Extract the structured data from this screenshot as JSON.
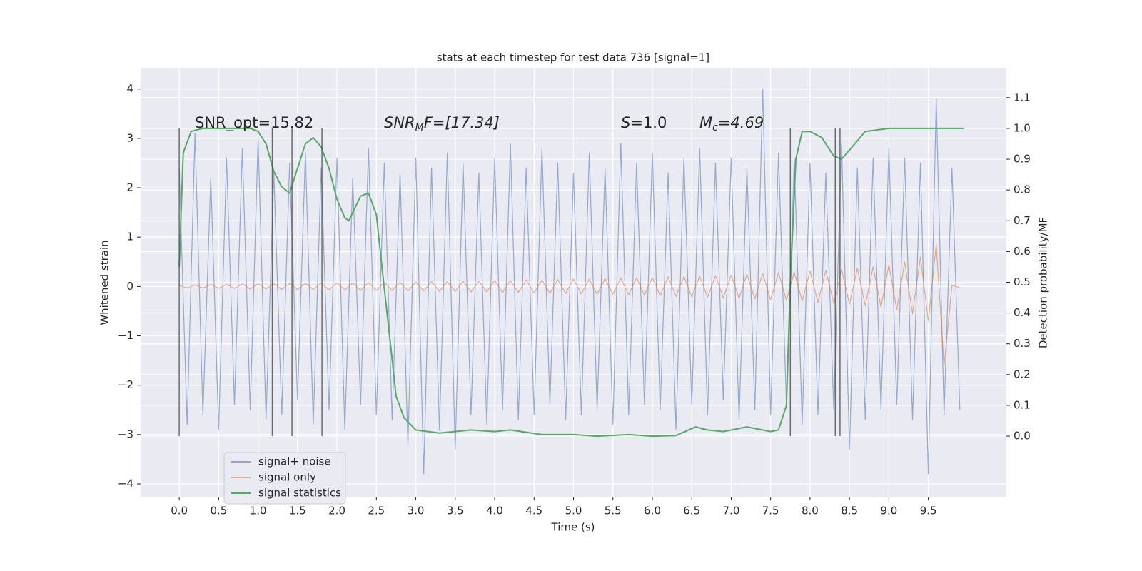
{
  "chart_data": {
    "type": "line",
    "title": "stats at each timestep for test data 736 [signal=1]",
    "xlabel": "Time (s)",
    "ylabel": "Whitened strain",
    "y2label": "Detection probability/MF",
    "annotations": [
      {
        "text": "SNR_opt=15.82"
      },
      {
        "main": "SNR",
        "sub": "M",
        "tail": "F=[17.34]"
      },
      {
        "main": "S",
        "tail": "=1.0"
      },
      {
        "main": "M",
        "sub": "c",
        "tail": "=4.69"
      }
    ],
    "x": [
      0,
      0.1,
      0.2,
      0.3,
      0.4,
      0.5,
      0.6,
      0.7,
      0.8,
      0.9,
      1,
      1.1,
      1.2,
      1.3,
      1.4,
      1.5,
      1.6,
      1.7,
      1.8,
      1.9,
      2,
      2.1,
      2.2,
      2.3,
      2.4,
      2.5,
      2.6,
      2.7,
      2.8,
      2.9,
      3,
      3.1,
      3.2,
      3.3,
      3.4,
      3.5,
      3.6,
      3.7,
      3.8,
      3.9,
      4,
      4.1,
      4.2,
      4.3,
      4.4,
      4.5,
      4.6,
      4.7,
      4.8,
      4.9,
      5,
      5.1,
      5.2,
      5.3,
      5.4,
      5.5,
      5.6,
      5.7,
      5.8,
      5.9,
      6,
      6.1,
      6.2,
      6.3,
      6.4,
      6.5,
      6.6,
      6.7,
      6.8,
      6.9,
      7,
      7.1,
      7.2,
      7.3,
      7.4,
      7.5,
      7.6,
      7.7,
      7.8,
      7.9,
      8,
      8.1,
      8.2,
      8.3,
      8.4,
      8.5,
      8.6,
      8.7,
      8.8,
      8.9,
      9,
      9.1,
      9.2,
      9.3,
      9.4,
      9.5,
      9.6,
      9.7,
      9.8,
      9.9
    ],
    "series": [
      {
        "name": "signal+ noise",
        "color": "#4c72b0",
        "values": [
          2.4,
          -2.8,
          3.1,
          -2.6,
          2.2,
          -2.9,
          2.6,
          -2.4,
          2.8,
          -2.5,
          3.0,
          -2.7,
          2.3,
          -2.6,
          2.5,
          -2.3,
          2.7,
          -2.8,
          2.4,
          -2.5,
          2.6,
          -2.9,
          2.2,
          -2.4,
          2.8,
          -2.6,
          2.5,
          -2.7,
          2.3,
          -3.2,
          2.6,
          -3.8,
          2.4,
          -2.9,
          2.7,
          -3.3,
          2.5,
          -2.6,
          2.3,
          -2.8,
          2.6,
          -2.5,
          2.9,
          -2.7,
          2.4,
          -2.6,
          2.8,
          -2.4,
          2.5,
          -2.7,
          2.3,
          -2.6,
          2.7,
          -2.5,
          2.4,
          -2.8,
          2.9,
          -2.6,
          2.5,
          -2.4,
          2.7,
          -2.5,
          2.3,
          -2.9,
          2.6,
          -2.4,
          2.8,
          -2.6,
          2.5,
          -2.3,
          2.6,
          -2.7,
          2.4,
          -2.5,
          4.0,
          -2.6,
          2.7,
          -2.4,
          2.6,
          -2.8,
          2.5,
          -2.6,
          2.3,
          -2.5,
          2.9,
          -3.3,
          2.4,
          -2.7,
          2.6,
          -2.5,
          2.8,
          -2.4,
          2.6,
          -2.7,
          2.5,
          -3.8,
          3.8,
          -2.6,
          2.4,
          -2.5
        ]
      },
      {
        "name": "signal only",
        "color": "#dd8452",
        "values": [
          0.02,
          -0.03,
          0.03,
          -0.03,
          0.04,
          -0.04,
          0.04,
          -0.04,
          0.05,
          -0.05,
          0.05,
          -0.05,
          0.05,
          -0.06,
          0.06,
          -0.06,
          0.06,
          -0.06,
          0.07,
          -0.07,
          0.07,
          -0.07,
          0.07,
          -0.08,
          0.08,
          -0.08,
          0.08,
          -0.08,
          0.09,
          -0.09,
          0.09,
          -0.09,
          0.1,
          -0.1,
          0.1,
          -0.1,
          0.11,
          -0.11,
          0.11,
          -0.11,
          0.12,
          -0.12,
          0.12,
          -0.12,
          0.13,
          -0.13,
          0.13,
          -0.14,
          0.14,
          -0.14,
          0.15,
          -0.15,
          0.15,
          -0.16,
          0.16,
          -0.16,
          0.17,
          -0.17,
          0.18,
          -0.18,
          0.18,
          -0.19,
          0.19,
          -0.2,
          0.2,
          -0.21,
          0.21,
          -0.22,
          0.22,
          -0.23,
          0.23,
          -0.24,
          0.25,
          -0.25,
          0.26,
          -0.27,
          0.28,
          -0.28,
          0.29,
          -0.3,
          0.31,
          -0.32,
          0.33,
          -0.34,
          0.35,
          -0.36,
          0.37,
          -0.39,
          0.4,
          -0.42,
          0.44,
          -0.47,
          0.5,
          -0.55,
          0.6,
          -0.7,
          0.85,
          -1.6,
          0.02,
          -0.02
        ]
      },
      {
        "name": "signal statistics",
        "color": "#55a868",
        "axis": "y2",
        "x": [
          0,
          0.05,
          0.15,
          0.3,
          0.9,
          1.0,
          1.1,
          1.2,
          1.3,
          1.4,
          1.5,
          1.6,
          1.7,
          1.8,
          1.9,
          2.0,
          2.1,
          2.15,
          2.3,
          2.4,
          2.5,
          2.6,
          2.7,
          2.75,
          2.85,
          3.0,
          3.3,
          3.7,
          4.0,
          4.2,
          4.6,
          5.0,
          5.3,
          5.7,
          6.0,
          6.3,
          6.55,
          6.7,
          6.9,
          7.2,
          7.5,
          7.6,
          7.7,
          7.75,
          7.82,
          7.9,
          8.0,
          8.15,
          8.3,
          8.4,
          8.5,
          8.7,
          9.0,
          9.95
        ],
        "values": [
          0.55,
          0.92,
          0.99,
          1.0,
          1.0,
          0.99,
          0.95,
          0.86,
          0.81,
          0.79,
          0.87,
          0.95,
          0.97,
          0.94,
          0.87,
          0.77,
          0.71,
          0.7,
          0.78,
          0.79,
          0.72,
          0.48,
          0.25,
          0.13,
          0.06,
          0.02,
          0.01,
          0.02,
          0.015,
          0.02,
          0.005,
          0.005,
          0.0,
          0.005,
          0.0,
          0.002,
          0.03,
          0.02,
          0.015,
          0.03,
          0.015,
          0.02,
          0.1,
          0.5,
          0.9,
          0.99,
          0.99,
          0.97,
          0.91,
          0.9,
          0.93,
          0.99,
          1.0,
          1.0
        ]
      }
    ],
    "vlines": [
      0,
      1.18,
      1.43,
      1.81,
      7.75,
      8.32,
      8.38
    ],
    "xlim": [
      -0.49,
      10.49
    ],
    "ylim": [
      -4.26,
      4.43
    ],
    "y2lim": [
      -0.197,
      1.197
    ],
    "xticks": [
      {
        "value": 0,
        "label": "0.0"
      },
      {
        "value": 0.5,
        "label": "0.5"
      },
      {
        "value": 1,
        "label": "1.0"
      },
      {
        "value": 1.5,
        "label": "1.5"
      },
      {
        "value": 2,
        "label": "2.0"
      },
      {
        "value": 2.5,
        "label": "2.5"
      },
      {
        "value": 3,
        "label": "3.0"
      },
      {
        "value": 3.5,
        "label": "3.5"
      },
      {
        "value": 4,
        "label": "4.0"
      },
      {
        "value": 4.5,
        "label": "4.5"
      },
      {
        "value": 5,
        "label": "5.0"
      },
      {
        "value": 5.5,
        "label": "5.5"
      },
      {
        "value": 6,
        "label": "6.0"
      },
      {
        "value": 6.5,
        "label": "6.5"
      },
      {
        "value": 7,
        "label": "7.0"
      },
      {
        "value": 7.5,
        "label": "7.5"
      },
      {
        "value": 8,
        "label": "8.0"
      },
      {
        "value": 8.5,
        "label": "8.5"
      },
      {
        "value": 9,
        "label": "9.0"
      },
      {
        "value": 9.5,
        "label": "9.5"
      }
    ],
    "yticks": [
      {
        "value": -4,
        "label": "−4"
      },
      {
        "value": -3,
        "label": "−3"
      },
      {
        "value": -2,
        "label": "−2"
      },
      {
        "value": -1,
        "label": "−1"
      },
      0,
      1,
      2,
      3,
      4
    ],
    "y2ticks": [
      {
        "value": 0,
        "label": "0.0"
      },
      {
        "value": 0.1,
        "label": "0.1"
      },
      {
        "value": 0.2,
        "label": "0.2"
      },
      {
        "value": 0.3,
        "label": "0.3"
      },
      {
        "value": 0.4,
        "label": "0.4"
      },
      {
        "value": 0.5,
        "label": "0.5"
      },
      {
        "value": 0.6,
        "label": "0.6"
      },
      {
        "value": 0.7,
        "label": "0.7"
      },
      {
        "value": 0.8,
        "label": "0.8"
      },
      {
        "value": 0.9,
        "label": "0.9"
      },
      {
        "value": 1.0,
        "label": "1.0"
      },
      {
        "value": 1.1,
        "label": "1.1"
      }
    ],
    "grid": true,
    "legend": "lower left"
  }
}
